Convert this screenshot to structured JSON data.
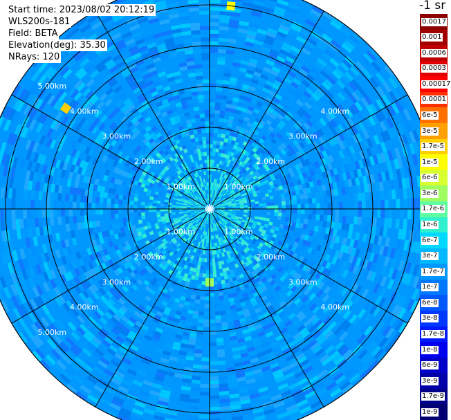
{
  "header": {
    "start_time": "Start time: 2023/08/02 20:12:19",
    "instrument": "WLS200s-181",
    "field": "Field: BETA",
    "elevation": "Elevation(deg): 35.30",
    "nrays": "NRays: 120"
  },
  "colorbar": {
    "unit": "-1 sr",
    "labels": [
      "0.0017",
      "0.001",
      "0.0006",
      "0.0003",
      "0.00017",
      "0.0001",
      "6e-5",
      "3e-5",
      "1.7e-5",
      "1e-5",
      "6e-6",
      "3e-6",
      "1.7e-6",
      "1e-6",
      "6e-7",
      "3e-7",
      "1.7e-7",
      "1e-7",
      "6e-8",
      "3e-8",
      "1.7e-8",
      "1e-8",
      "6e-9",
      "3e-9",
      "1.7e-9",
      "1e-9"
    ],
    "colors": [
      "#8b0000",
      "#a00000",
      "#c00000",
      "#e00000",
      "#ff0000",
      "#ff3000",
      "#ff7000",
      "#ffa000",
      "#ffd000",
      "#ffff00",
      "#d8ff30",
      "#a0ff60",
      "#60ffa0",
      "#30f0d0",
      "#00d8ff",
      "#00b8ff",
      "#0098ff",
      "#0078ff",
      "#0058ff",
      "#0038ff",
      "#0018ff",
      "#0000ee",
      "#0000c8",
      "#0000a8",
      "#000088",
      "#000070"
    ]
  },
  "chart_data": {
    "type": "ppi",
    "title": "",
    "field": "BETA",
    "unit": "sr-1",
    "range_rings_km": [
      1,
      2,
      3,
      4,
      5
    ],
    "range_labels": [
      "1.00km",
      "2.00km",
      "3.00km",
      "4.00km",
      "5.00km"
    ],
    "spokes_deg": [
      0,
      30,
      60,
      90,
      120,
      150,
      180,
      210,
      240,
      270,
      300,
      330
    ],
    "n_rays": 120,
    "max_range_km": 5.6,
    "background_value": 1.7e-07,
    "hotspots": [
      {
        "azimuth_deg": 6,
        "range_km": 5.0,
        "value": 1e-05
      },
      {
        "azimuth_deg": 305,
        "range_km": 4.3,
        "value": 1.7e-05
      },
      {
        "azimuth_deg": 180,
        "range_km": 1.8,
        "value": 3e-06
      }
    ]
  }
}
